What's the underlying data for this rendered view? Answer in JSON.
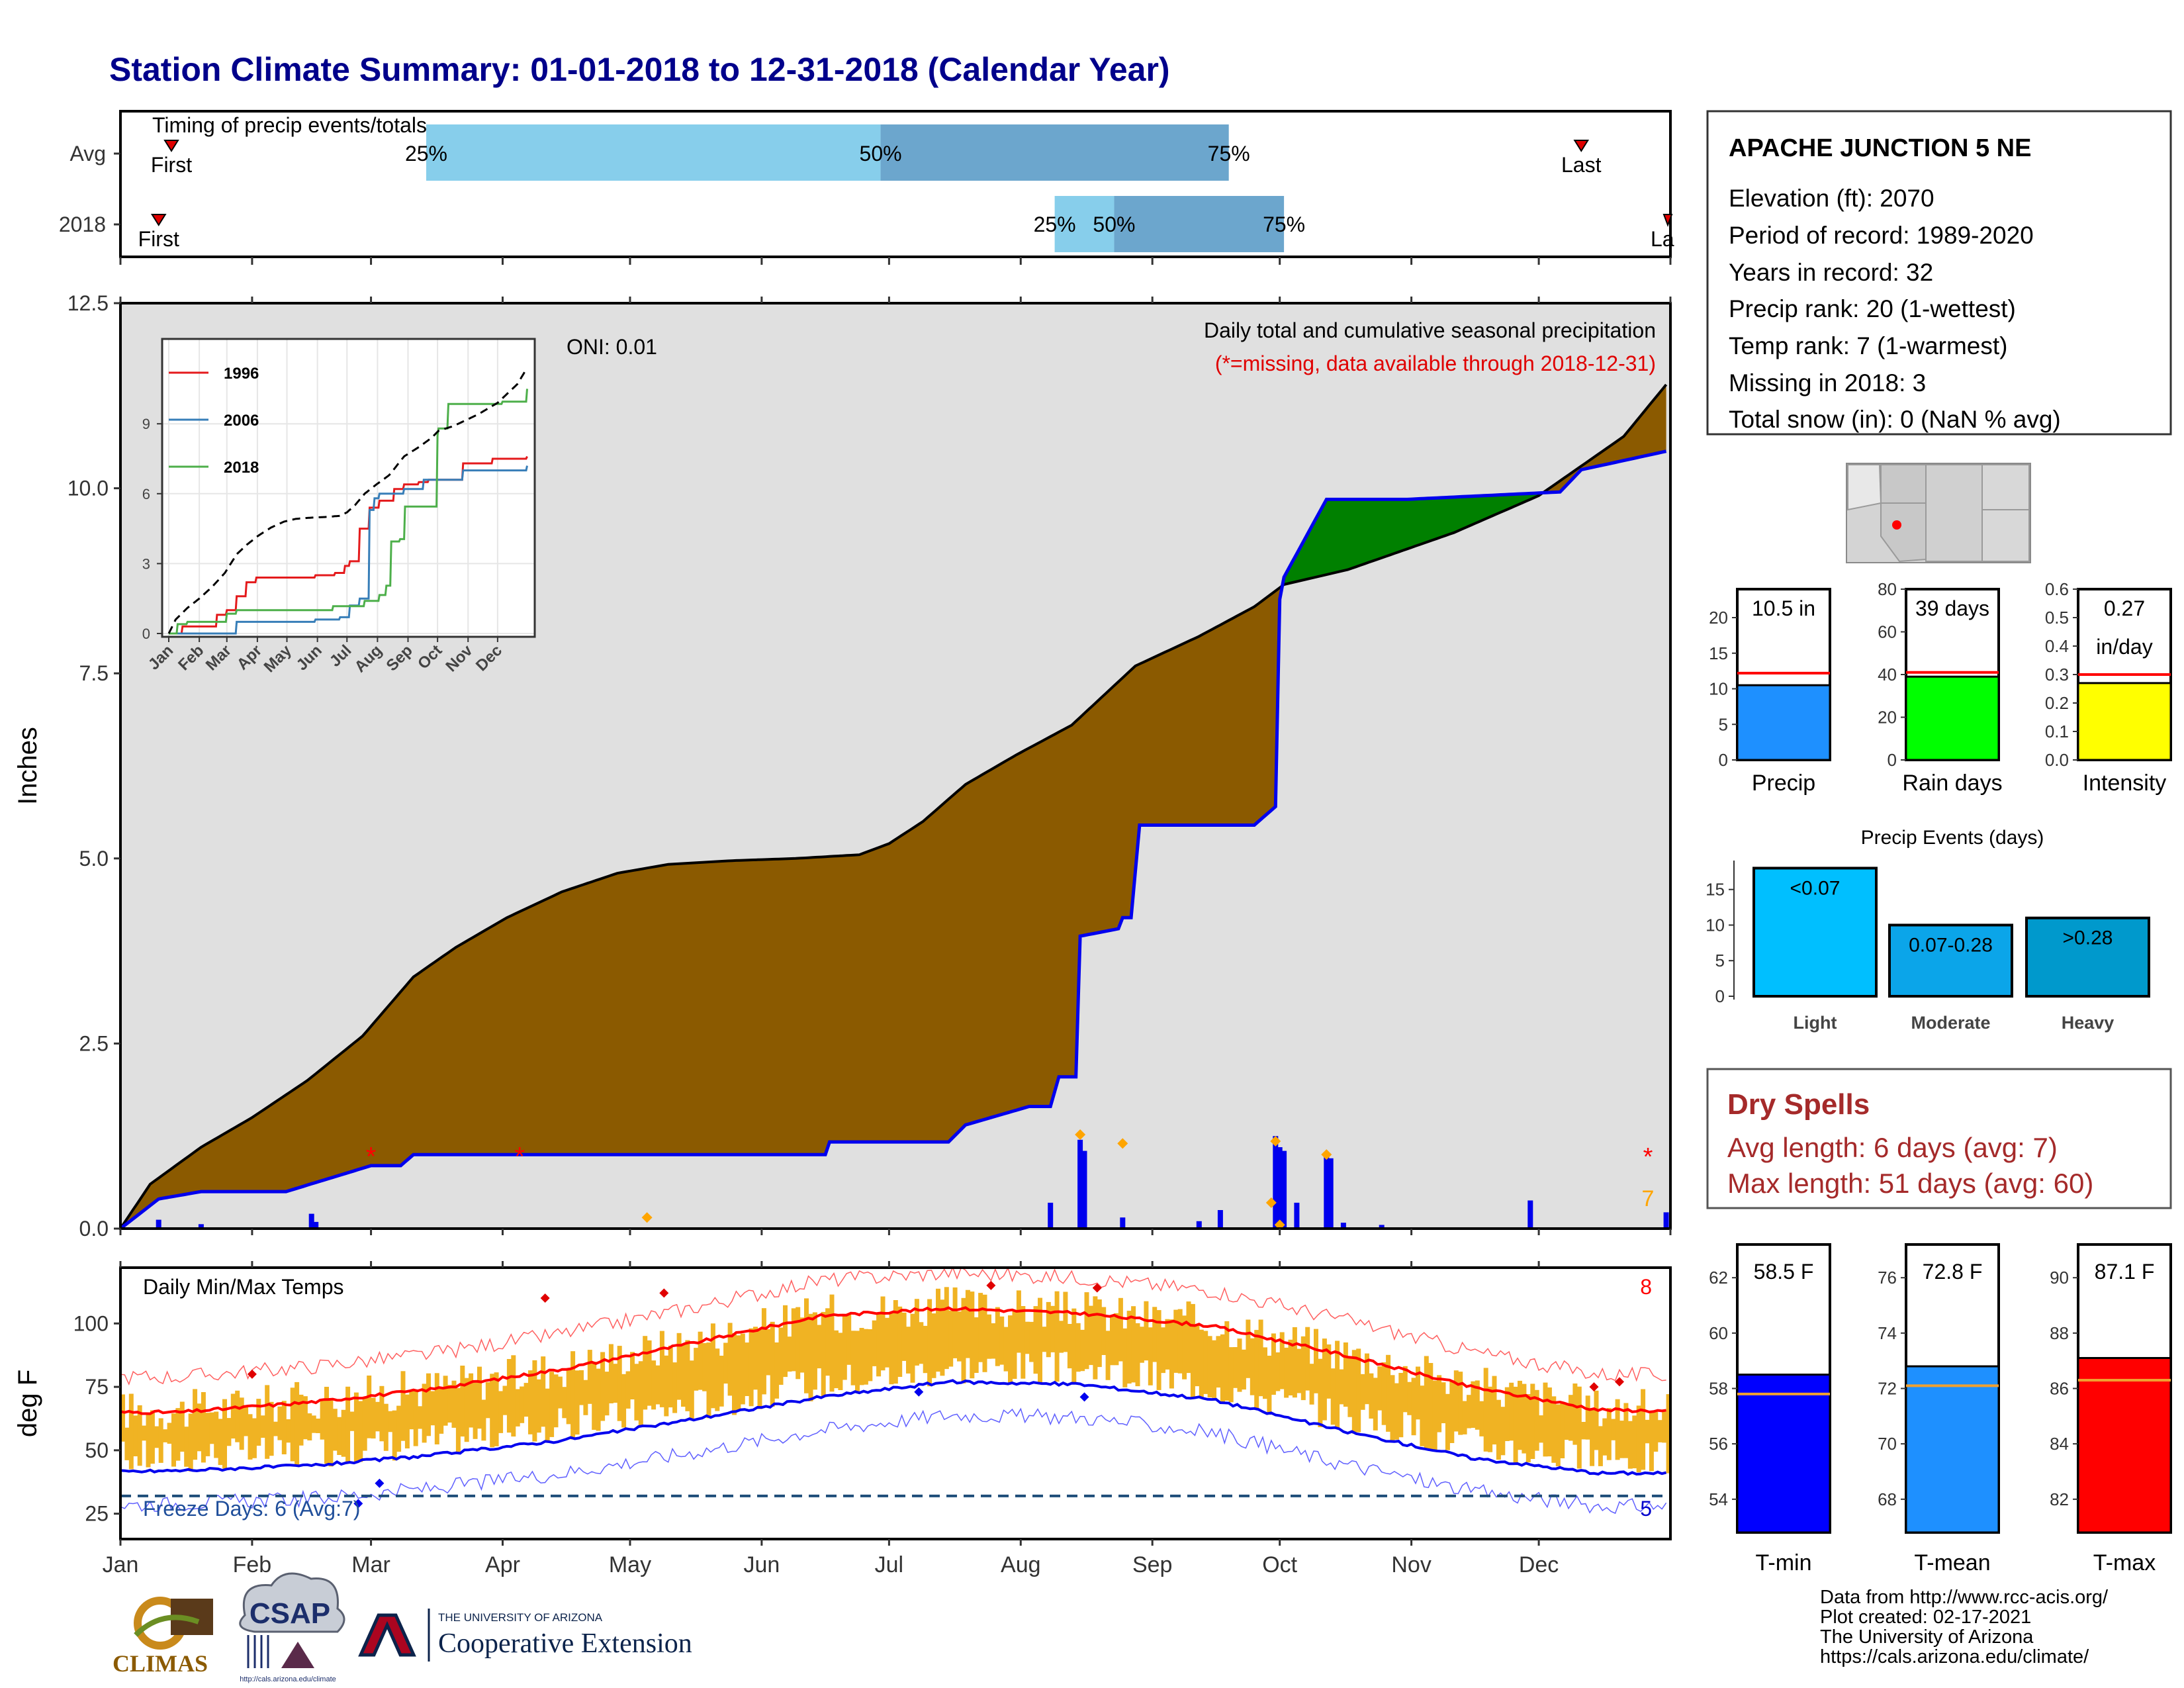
{
  "title": "Station Climate Summary: 01-01-2018 to 12-31-2018 (Calendar Year)",
  "timing": {
    "label": "Timing of precip events/totals",
    "rows": [
      {
        "name": "Avg",
        "first": "01-13",
        "last": "12-11",
        "p25": "03-14",
        "p50": "06-29",
        "p75": "09-19"
      },
      {
        "name": "2018",
        "first": "01-10",
        "last": "12-31",
        "p25": "08-09",
        "p50": "08-23",
        "p75": "10-02"
      }
    ],
    "first_label": "First",
    "last_label": "Last",
    "p25_label": "25%",
    "p50_label": "50%",
    "p75_label": "75%"
  },
  "precip": {
    "ylabel": "Inches",
    "yticks": [
      "0.0",
      "2.5",
      "5.0",
      "7.5",
      "10.0",
      "12.5"
    ],
    "caption": "Daily total and cumulative seasonal precipitation",
    "missing_note": "(*=missing, data available through 2018-12-31)",
    "oni": "ONI: 0.01",
    "missing_marker": "*",
    "missing_count": "7",
    "colors": {
      "deficit": "#8B5A00",
      "surplus": "#008000",
      "observed": "#0000EE",
      "background": "#E0E0E0",
      "normal_line": "#000000"
    }
  },
  "inset": {
    "yticks": [
      "0",
      "3",
      "6",
      "9"
    ],
    "months": [
      "Jan",
      "Feb",
      "Mar",
      "Apr",
      "May",
      "Jun",
      "Jul",
      "Aug",
      "Sep",
      "Oct",
      "Nov",
      "Dec"
    ],
    "legend": [
      {
        "name": "1996",
        "color": "#E41A1C"
      },
      {
        "name": "2006",
        "color": "#377EB8"
      },
      {
        "name": "2018",
        "color": "#4DAF4A"
      }
    ]
  },
  "temps": {
    "ylabel": "deg F",
    "label": "Daily Min/Max Temps",
    "yticks": [
      "25",
      "50",
      "75",
      "100"
    ],
    "freeze": "Freeze Days: 6 (Avg:7)",
    "count_top": "8",
    "count_bottom": "5",
    "months": [
      "Jan",
      "Feb",
      "Mar",
      "Apr",
      "May",
      "Jun",
      "Jul",
      "Aug",
      "Sep",
      "Oct",
      "Nov",
      "Dec"
    ]
  },
  "station": {
    "name": "APACHE JUNCTION 5 NE",
    "lines": [
      "Elevation (ft): 2070",
      "Period of record: 1989-2020",
      "Years in record: 32",
      "Precip rank: 20 (1-wettest)",
      "Temp rank: 7 (1-warmest)",
      "Missing in 2018: 3",
      "Total snow (in): 0 (NaN % avg)"
    ]
  },
  "summary_bars": [
    {
      "label": "Precip",
      "value": 10.5,
      "avg": 12.2,
      "text": "10.5 in",
      "text2": "",
      "ymax": 24,
      "ticks": [
        "0",
        "5",
        "10",
        "15",
        "20"
      ],
      "tickvals": [
        0,
        5,
        10,
        15,
        20
      ],
      "color": "#1E90FF"
    },
    {
      "label": "Rain days",
      "value": 39,
      "avg": 41,
      "text": "39 days",
      "text2": "",
      "ymax": 80,
      "ticks": [
        "0",
        "20",
        "40",
        "60",
        "80"
      ],
      "tickvals": [
        0,
        20,
        40,
        60,
        80
      ],
      "color": "#00FF00"
    },
    {
      "label": "Intensity",
      "value": 0.27,
      "avg": 0.3,
      "text": "0.27",
      "text2": "in/day",
      "ymax": 0.6,
      "ticks": [
        "0.0",
        "0.1",
        "0.2",
        "0.3",
        "0.4",
        "0.5",
        "0.6"
      ],
      "tickvals": [
        0,
        0.1,
        0.2,
        0.3,
        0.4,
        0.5,
        0.6
      ],
      "color": "#FFFF00"
    }
  ],
  "events": {
    "title": "Precip Events (days)",
    "ticks": [
      "0",
      "5",
      "10",
      "15"
    ],
    "tickvals": [
      0,
      5,
      10,
      15
    ],
    "ymax": 18.6,
    "bars": [
      {
        "label": "Light",
        "value": 18,
        "text": "<0.07",
        "color": "#00BFFF"
      },
      {
        "label": "Moderate",
        "value": 10,
        "text": "0.07-0.28",
        "color": "#0BA5E9"
      },
      {
        "label": "Heavy",
        "value": 11,
        "text": ">0.28",
        "color": "#0099CC"
      }
    ]
  },
  "dry_spells": {
    "title": "Dry Spells",
    "avg": "Avg length: 6 days (avg: 7)",
    "max": "Max length: 51 days (avg: 60)"
  },
  "temp_bars": [
    {
      "label": "T-min",
      "value": 58.5,
      "avg": 57.8,
      "text": "58.5 F",
      "ymin": 52.8,
      "ymax": 63.2,
      "ticks": [
        "54",
        "56",
        "58",
        "60",
        "62"
      ],
      "tickvals": [
        54,
        56,
        58,
        60,
        62
      ],
      "color": "#0000FF"
    },
    {
      "label": "T-mean",
      "value": 72.8,
      "avg": 72.1,
      "text": "72.8 F",
      "ymin": 66.8,
      "ymax": 77.2,
      "ticks": [
        "68",
        "70",
        "72",
        "74",
        "76"
      ],
      "tickvals": [
        68,
        70,
        72,
        74,
        76
      ],
      "color": "#1E90FF"
    },
    {
      "label": "T-max",
      "value": 87.1,
      "avg": 86.3,
      "text": "87.1 F",
      "ymin": 80.8,
      "ymax": 91.2,
      "ticks": [
        "82",
        "84",
        "86",
        "88",
        "90"
      ],
      "tickvals": [
        82,
        84,
        86,
        88,
        90
      ],
      "color": "#FF0000"
    }
  ],
  "footer": {
    "lines": [
      "Data from http://www.rcc-acis.org/",
      "Plot created: 02-17-2021",
      "The University of Arizona",
      "https://cals.arizona.edu/climate/"
    ],
    "logo_climas": "CLIMAS",
    "logo_csap": "CSAP",
    "csap_url": "http://cals.arizona.edu/climate",
    "ua_small": "THE UNIVERSITY OF ARIZONA",
    "ua_big": "Cooperative Extension"
  },
  "chart_data": {
    "type": "area",
    "title": "Daily total and cumulative seasonal precipitation",
    "ylabel": "Inches",
    "ylim": [
      0,
      12.5
    ],
    "x_months": [
      "Jan",
      "Feb",
      "Mar",
      "Apr",
      "May",
      "Jun",
      "Jul",
      "Aug",
      "Sep",
      "Oct",
      "Nov",
      "Dec"
    ],
    "normal_cumulative": {
      "doy": [
        1,
        8,
        20,
        32,
        45,
        58,
        70,
        80,
        92,
        105,
        118,
        130,
        145,
        160,
        175,
        182,
        190,
        200,
        212,
        225,
        240,
        255,
        268,
        275,
        290,
        300,
        315,
        335,
        345,
        355,
        365
      ],
      "inches": [
        0,
        0.6,
        1.1,
        1.5,
        2.0,
        2.6,
        3.4,
        3.8,
        4.2,
        4.55,
        4.8,
        4.92,
        4.97,
        5.0,
        5.05,
        5.2,
        5.5,
        6.0,
        6.4,
        6.8,
        7.6,
        8.0,
        8.4,
        8.7,
        8.9,
        9.1,
        9.4,
        9.9,
        10.3,
        10.7,
        11.4
      ]
    },
    "observed_cumulative": {
      "doy": [
        1,
        10,
        20,
        40,
        60,
        67,
        70,
        100,
        140,
        167,
        168,
        196,
        200,
        215,
        220,
        222,
        226,
        227,
        236,
        237,
        239,
        241,
        242,
        268,
        273,
        274,
        275,
        285,
        304,
        340,
        345,
        365
      ],
      "inches": [
        0,
        0.4,
        0.5,
        0.5,
        0.85,
        0.85,
        1.0,
        1.0,
        1.0,
        1.0,
        1.17,
        1.17,
        1.4,
        1.65,
        1.65,
        2.05,
        2.05,
        3.95,
        4.05,
        4.2,
        4.2,
        5.45,
        5.45,
        5.45,
        5.7,
        8.5,
        8.8,
        9.85,
        9.85,
        9.95,
        10.25,
        10.5
      ]
    },
    "daily_precip": {
      "doy": [
        10,
        20,
        46,
        47,
        220,
        227,
        228,
        237,
        255,
        260,
        273,
        274,
        275,
        278,
        285,
        286,
        289,
        298,
        333,
        365
      ],
      "inches": [
        0.12,
        0.06,
        0.2,
        0.09,
        0.35,
        1.2,
        1.05,
        0.15,
        0.1,
        0.25,
        1.25,
        1.1,
        1.05,
        0.35,
        1.0,
        0.95,
        0.08,
        0.05,
        0.38,
        0.22
      ]
    },
    "temps": {
      "months_mid": [
        15,
        46,
        74,
        105,
        135,
        166,
        196,
        227,
        258,
        288,
        319,
        349
      ],
      "avg_max": [
        65,
        69,
        74,
        82,
        92,
        103,
        106,
        104,
        99,
        88,
        75,
        66
      ],
      "avg_min": [
        42,
        44,
        48,
        54,
        62,
        71,
        77,
        76,
        70,
        58,
        47,
        41
      ]
    }
  }
}
